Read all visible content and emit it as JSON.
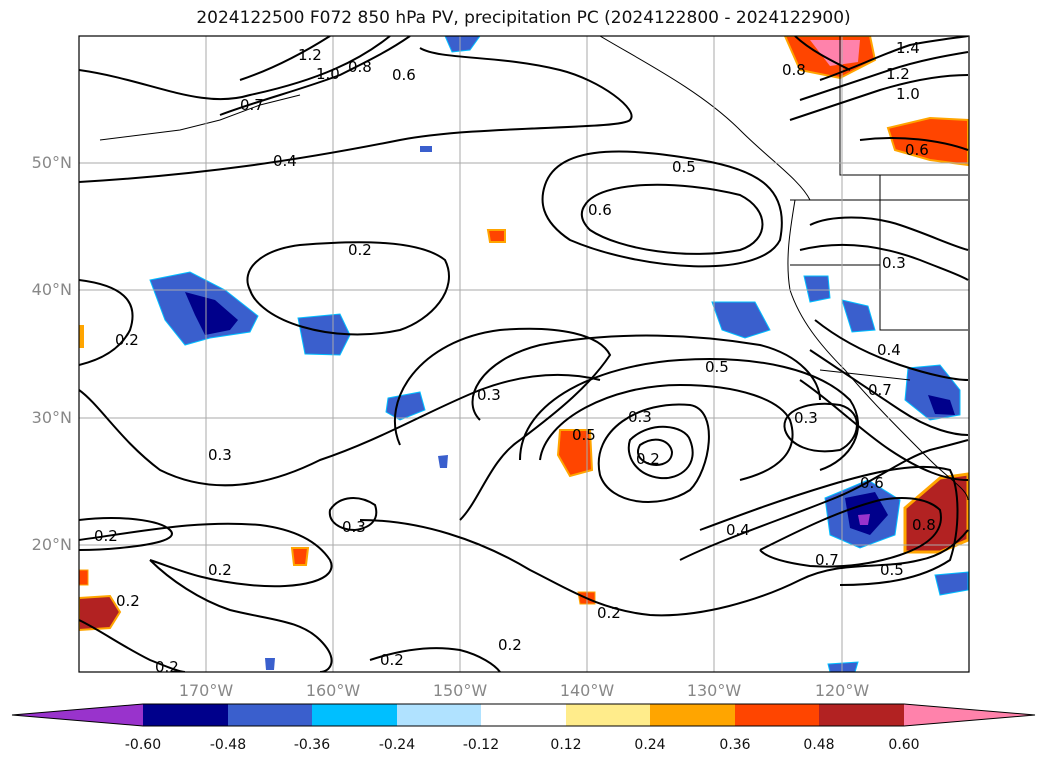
{
  "title": "2024122500 F072 850 hPa PV, precipitation PC (2024122800 - 2024122900)",
  "lat_ticks": [
    "50°N",
    "40°N",
    "30°N",
    "20°N"
  ],
  "lon_ticks": [
    "170°W",
    "160°W",
    "150°W",
    "140°W",
    "130°W",
    "120°W"
  ],
  "contour_labels": [
    "1.2",
    "1.0",
    "0.8",
    "0.6",
    "0.7",
    "0.4",
    "0.2",
    "0.2",
    "0.3",
    "0.2",
    "0.3",
    "0.2",
    "0.2",
    "0.2",
    "0.2",
    "0.3",
    "0.5",
    "0.3",
    "0.2",
    "0.5",
    "0.4",
    "0.7",
    "0.5",
    "0.6",
    "0.8",
    "0.3",
    "0.4",
    "0.5",
    "0.6",
    "0.3",
    "1.4",
    "1.2",
    "1.0",
    "0.8",
    "0.6",
    "0.2",
    "0.2",
    "0.7"
  ],
  "colorbar": {
    "labels": [
      "-0.60",
      "-0.48",
      "-0.36",
      "-0.24",
      "-0.12",
      "0.12",
      "0.24",
      "0.36",
      "0.48",
      "0.60"
    ],
    "colors": [
      "#9933cc",
      "#00008b",
      "#3a5fcd",
      "#00bfff",
      "#b0e2ff",
      "#ffffff",
      "#ffec8b",
      "#ffa500",
      "#ff4500",
      "#b22222",
      "#ff82ab"
    ]
  }
}
